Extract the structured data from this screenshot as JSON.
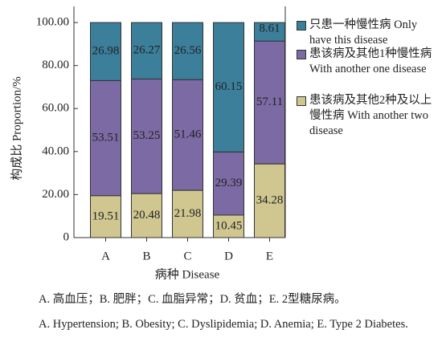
{
  "chart_data": {
    "type": "stacked_bar",
    "categories": [
      "A",
      "B",
      "C",
      "D",
      "E"
    ],
    "series": [
      {
        "name": "患该病及其他2种及以上慢性病 With another two disease",
        "color": "#cfc690",
        "values": [
          19.51,
          20.48,
          21.98,
          10.45,
          34.28
        ]
      },
      {
        "name": "患该病及其他1种慢性病 With another one disease",
        "color": "#7b6aa4",
        "values": [
          53.51,
          53.25,
          51.46,
          29.39,
          57.11
        ]
      },
      {
        "name": "只患一种慢性病 Only have this disease",
        "color": "#3b7f9b",
        "values": [
          26.98,
          26.27,
          26.56,
          60.15,
          8.61
        ]
      }
    ],
    "ylim": [
      0,
      107.5
    ],
    "yticks": [
      0,
      {
        "value": 20,
        "label": "20.00"
      },
      {
        "value": 40,
        "label": "40.00"
      },
      {
        "value": 60,
        "label": "60.00"
      },
      {
        "value": 80,
        "label": "80.00"
      },
      {
        "value": 100,
        "label": "100.00"
      }
    ],
    "xlabel": "病种 Disease",
    "ylabel": "构成比 Proportion/%",
    "notes": [
      "A. 高血压；B. 肥胖；C. 血脂异常；D. 贫血；E. 2型糖尿病。",
      "A. Hypertension; B. Obesity; C. Dyslipidemia; D. Anemia; E. Type 2 Diabetes."
    ]
  }
}
